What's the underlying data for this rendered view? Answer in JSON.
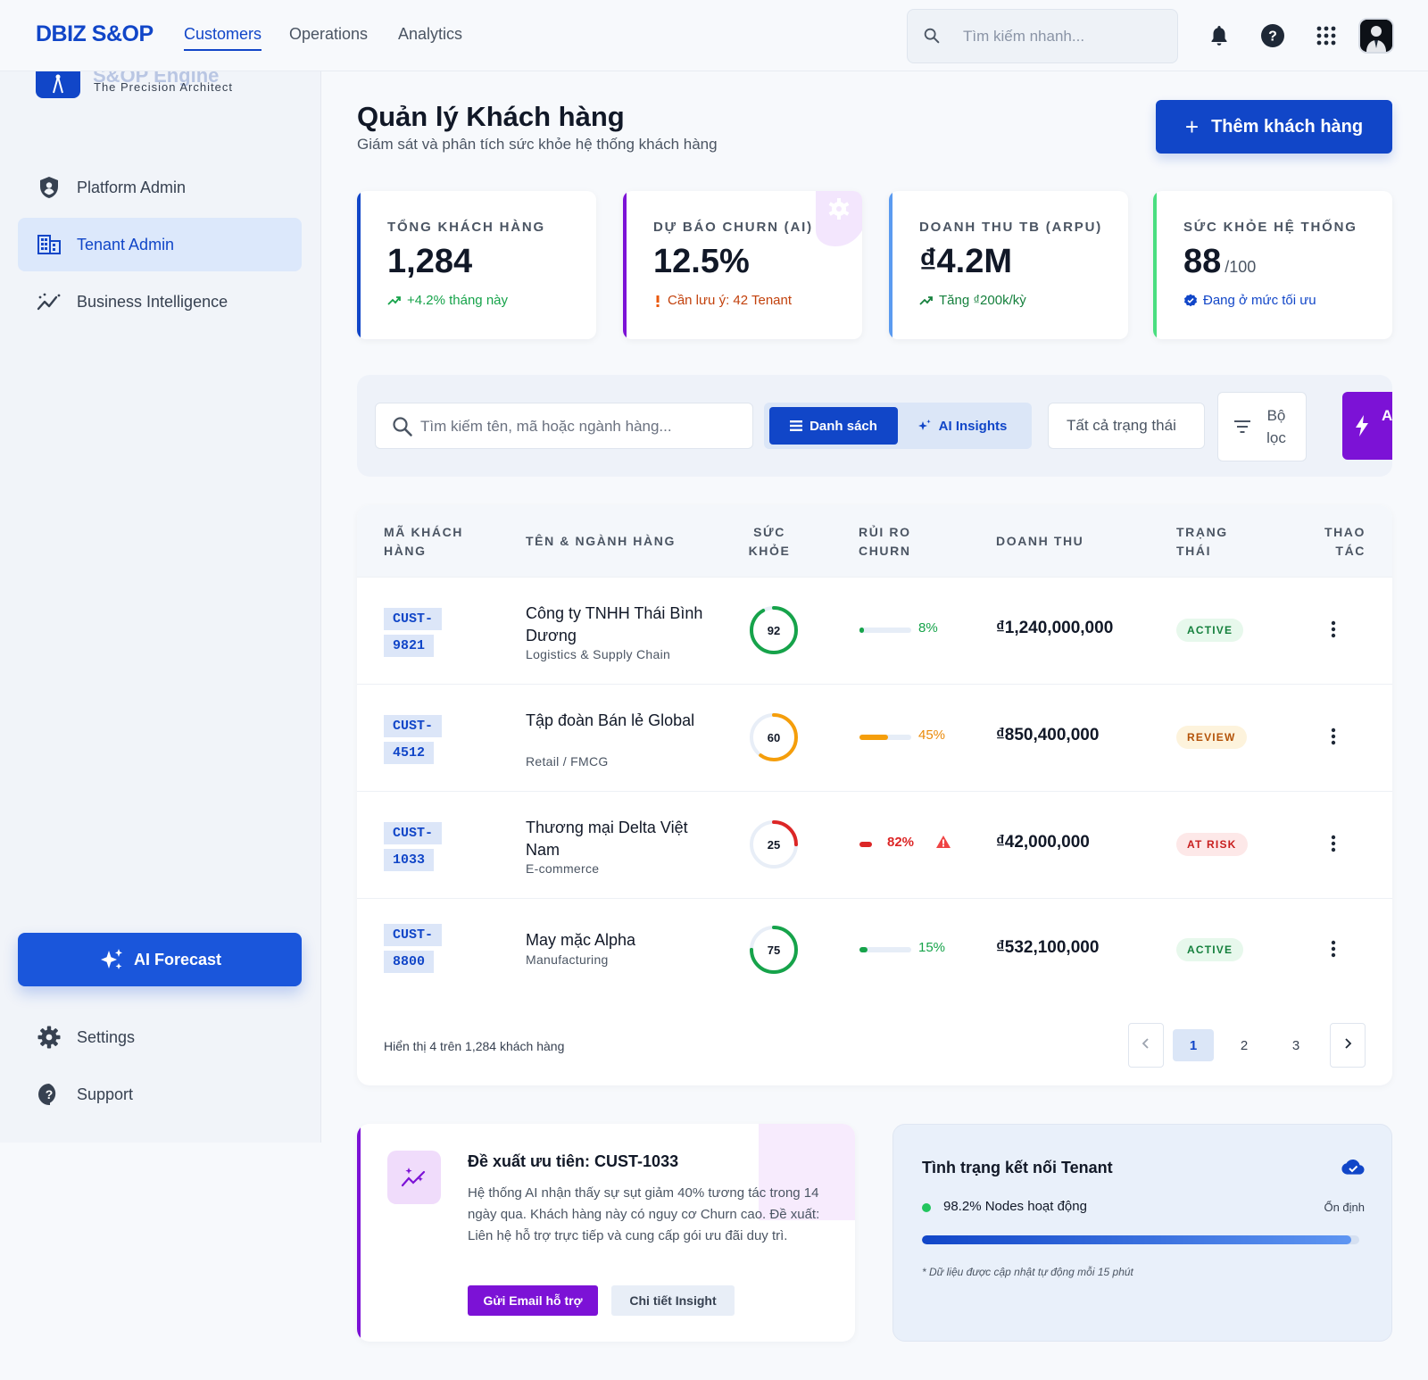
{
  "topnav": {
    "brand": "DBIZ S&OP",
    "links": [
      {
        "label": "Customers",
        "active": true
      },
      {
        "label": "Operations",
        "active": false
      },
      {
        "label": "Analytics",
        "active": false
      }
    ],
    "search_placeholder": "Tìm kiếm nhanh..."
  },
  "sidebar": {
    "engine_title": "S&OP Engine",
    "engine_subtitle": "The Precision Architect",
    "items": [
      {
        "label": "Platform Admin",
        "icon": "shield-icon",
        "active": false
      },
      {
        "label": "Tenant Admin",
        "icon": "building-icon",
        "active": true
      },
      {
        "label": "Business Intelligence",
        "icon": "trend-icon",
        "active": false
      }
    ],
    "ai_forecast_label": "AI Forecast",
    "settings_label": "Settings",
    "support_label": "Support"
  },
  "header": {
    "title": "Quản lý Khách hàng",
    "subtitle": "Giám sát và phân tích sức khỏe hệ thống khách hàng",
    "add_button": "Thêm khách hàng"
  },
  "kpis": [
    {
      "label": "TỔNG KHÁCH HÀNG",
      "value": "1,284",
      "unit": "",
      "note": "+4.2% tháng này",
      "accent": "#1146c8",
      "note_color": "#16a34a"
    },
    {
      "label": "DỰ BÁO CHURN (AI)",
      "value": "12.5%",
      "unit": "",
      "note": "Cần lưu ý: 42 Tenant",
      "accent": "#7c12d6",
      "note_color": "#c2410c"
    },
    {
      "label": "DOANH THU TB (ARPU)",
      "value": "₫4.2M",
      "unit": "",
      "note": "Tăng ₫200k/kỳ",
      "accent": "#5b9bf0",
      "note_color": "#15803d"
    },
    {
      "label": "SỨC KHỎE HỆ THỐNG",
      "value": "88",
      "unit": "/100",
      "note": "Đang ở mức tối ưu",
      "accent": "#4ade80",
      "note_color": "#1146c8"
    }
  ],
  "toolbar": {
    "search_placeholder": "Tìm kiếm tên, mã hoặc ngành hàng...",
    "view_list": "Danh sách",
    "view_ai": "AI Insights",
    "status_filter": "Tất cả trạng thái",
    "filter_label": "Bộ lọc",
    "ai_search_label": "AI Search"
  },
  "table": {
    "headers": {
      "id": "MÃ KHÁCH HÀNG",
      "name": "TÊN & NGÀNH HÀNG",
      "health": "SỨC KHỎE",
      "churn": "RỦI RO CHURN",
      "revenue": "DOANH THU",
      "status": "TRẠNG THÁI",
      "actions": "THAO TÁC"
    },
    "rows": [
      {
        "id": "CUST-9821",
        "name": "Công ty TNHH Thái Bình Dương",
        "industry": "Logistics & Supply Chain",
        "health": 92,
        "churn": 8,
        "churn_label": "8%",
        "revenue": "₫1,240,000,000",
        "status": "ACTIVE",
        "color": "#16a34a",
        "warn": false
      },
      {
        "id": "CUST-4512",
        "name": "Tập đoàn Bán lẻ Global",
        "industry": "Retail / FMCG",
        "health": 60,
        "churn": 45,
        "churn_label": "45%",
        "revenue": "₫850,400,000",
        "status": "REVIEW",
        "color": "#f59e0b",
        "warn": false
      },
      {
        "id": "CUST-1033",
        "name": "Thương mại Delta Việt Nam",
        "industry": "E-commerce",
        "health": 25,
        "churn": 82,
        "churn_label": "82%",
        "revenue": "₫42,000,000",
        "status": "AT RISK",
        "color": "#dc2626",
        "warn": true
      },
      {
        "id": "CUST-8800",
        "name": "May mặc Alpha",
        "industry": "Manufacturing",
        "health": 75,
        "churn": 15,
        "churn_label": "15%",
        "revenue": "₫532,100,000",
        "status": "ACTIVE",
        "color": "#16a34a",
        "warn": false
      }
    ],
    "footer_text": "Hiển thị 4 trên 1,284 khách hàng",
    "pages": [
      "1",
      "2",
      "3"
    ],
    "current_page": "1"
  },
  "insight": {
    "title": "Đề xuất ưu tiên: CUST-1033",
    "text": "Hệ thống AI nhận thấy sự sụt giảm 40% tương tác trong 14 ngày qua. Khách hàng này có nguy cơ Churn cao. Đề xuất: Liên hệ hỗ trợ trực tiếp và cung cấp gói ưu đãi duy trì.",
    "primary_button": "Gửi Email hỗ trợ",
    "secondary_button": "Chi tiết Insight"
  },
  "connection": {
    "title": "Tình trạng kết nối Tenant",
    "nodes_text": "98.2% Nodes hoạt động",
    "nodes_percent": 98.2,
    "stable_label": "Ổn định",
    "note": "* Dữ liệu được cập nhật tự động mỗi 15 phút"
  }
}
